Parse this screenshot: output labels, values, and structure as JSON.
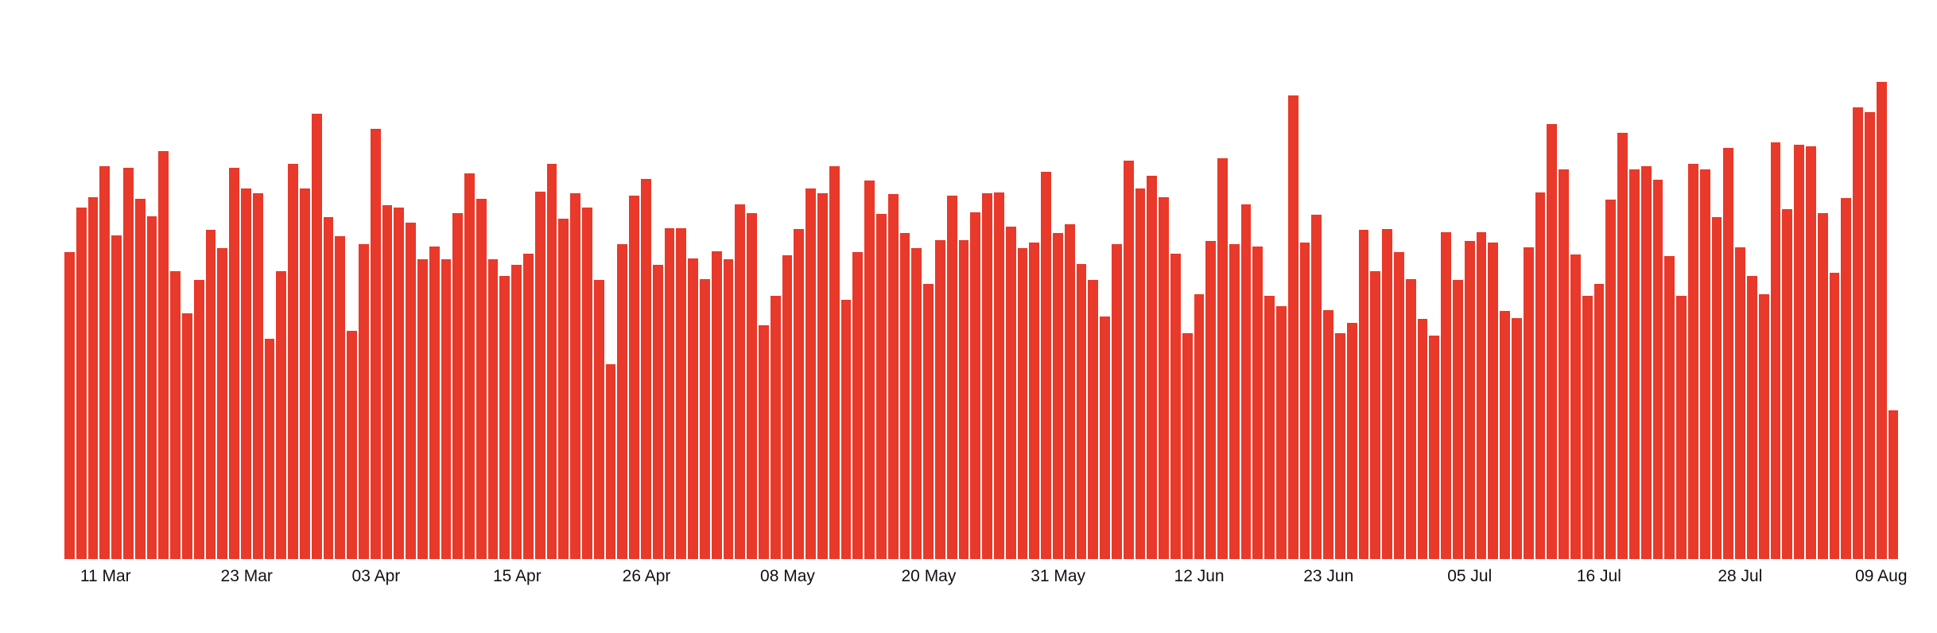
{
  "chart_data": {
    "type": "bar",
    "title": "",
    "xlabel": "",
    "ylabel": "",
    "grid": false,
    "legend": false,
    "background_color": "#ffffff",
    "bar_color": "#e8392a",
    "tick_text_color": "#111111",
    "bar_count": 156,
    "ylim": [
      0,
      602
    ],
    "values": [
      387,
      443,
      457,
      496,
      408,
      494,
      455,
      432,
      515,
      363,
      310,
      352,
      415,
      392,
      494,
      468,
      462,
      278,
      363,
      499,
      468,
      562,
      431,
      407,
      288,
      397,
      543,
      447,
      443,
      424,
      378,
      394,
      378,
      436,
      487,
      455,
      378,
      357,
      371,
      385,
      464,
      499,
      429,
      462,
      443,
      352,
      246,
      397,
      459,
      480,
      371,
      417,
      417,
      379,
      353,
      388,
      378,
      448,
      436,
      295,
      332,
      383,
      416,
      468,
      462,
      496,
      327,
      387,
      478,
      435,
      461,
      411,
      392,
      347,
      402,
      459,
      402,
      437,
      462,
      463,
      419,
      392,
      399,
      489,
      411,
      422,
      372,
      352,
      306,
      397,
      503,
      468,
      484,
      457,
      385,
      285,
      334,
      401,
      506,
      397,
      448,
      394,
      332,
      319,
      585,
      399,
      434,
      314,
      285,
      298,
      415,
      363,
      416,
      387,
      353,
      303,
      282,
      412,
      352,
      401,
      412,
      399,
      313,
      304,
      393,
      463,
      549,
      492,
      384,
      332,
      347,
      454,
      538,
      492,
      496,
      479,
      382,
      332,
      499,
      492,
      431,
      519,
      393,
      357,
      334,
      526,
      441,
      523,
      521,
      436,
      361,
      456,
      570,
      564,
      602,
      188
    ],
    "x_ticks": [
      {
        "label": "11 Mar",
        "index": 3
      },
      {
        "label": "23 Mar",
        "index": 15
      },
      {
        "label": "03 Apr",
        "index": 26
      },
      {
        "label": "15 Apr",
        "index": 38
      },
      {
        "label": "26 Apr",
        "index": 49
      },
      {
        "label": "08 May",
        "index": 61
      },
      {
        "label": "20 May",
        "index": 73
      },
      {
        "label": "31 May",
        "index": 84
      },
      {
        "label": "12 Jun",
        "index": 96
      },
      {
        "label": "23 Jun",
        "index": 107
      },
      {
        "label": "05 Jul",
        "index": 119
      },
      {
        "label": "16 Jul",
        "index": 130
      },
      {
        "label": "28 Jul",
        "index": 142
      },
      {
        "label": "09 Aug",
        "index": 154
      }
    ]
  }
}
